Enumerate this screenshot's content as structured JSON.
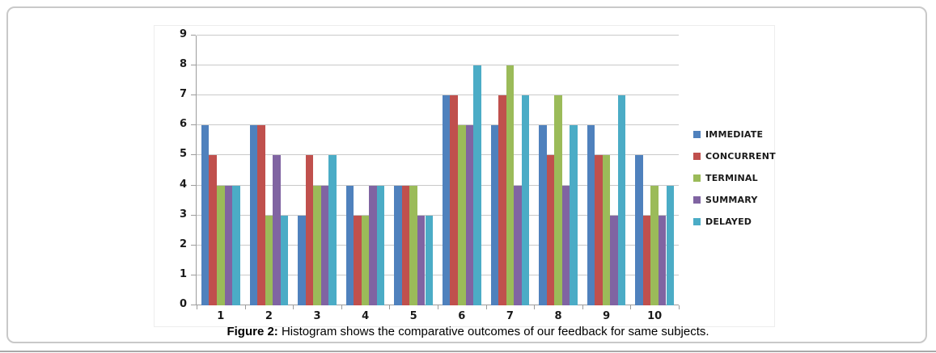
{
  "figure": {
    "caption_label": "Figure 2:",
    "caption_text": "Histogram shows the comparative outcomes of our feedback for same subjects."
  },
  "chart_data": {
    "type": "bar",
    "title": "",
    "categories": [
      "1",
      "2",
      "3",
      "4",
      "5",
      "6",
      "7",
      "8",
      "9",
      "10"
    ],
    "series": [
      {
        "name": "IMMEDIATE",
        "color": "#4F81BD",
        "values": [
          6,
          6,
          3,
          4,
          4,
          7,
          6,
          6,
          6,
          5
        ]
      },
      {
        "name": "CONCURRENT",
        "color": "#C0504D",
        "values": [
          5,
          6,
          5,
          3,
          4,
          7,
          7,
          5,
          5,
          3
        ]
      },
      {
        "name": "TERMINAL",
        "color": "#9BBB59",
        "values": [
          4,
          3,
          4,
          3,
          4,
          6,
          8,
          7,
          5,
          4
        ]
      },
      {
        "name": "SUMMARY",
        "color": "#8064A2",
        "values": [
          4,
          5,
          4,
          4,
          3,
          6,
          4,
          4,
          3,
          3
        ]
      },
      {
        "name": "DELAYED",
        "color": "#4BACC6",
        "values": [
          4,
          3,
          5,
          4,
          3,
          8,
          7,
          6,
          7,
          4
        ]
      }
    ],
    "xlabel": "",
    "ylabel": "",
    "ylim": [
      0,
      9
    ],
    "yticks": [
      0,
      1,
      2,
      3,
      4,
      5,
      6,
      7,
      8,
      9
    ],
    "grid": true,
    "legend_position": "right",
    "colors": {
      "gridline": "#c9c9c9",
      "axis": "#9c9c9c",
      "tick": "#9c9c9c",
      "tick_label": "#1a1a1a"
    }
  }
}
